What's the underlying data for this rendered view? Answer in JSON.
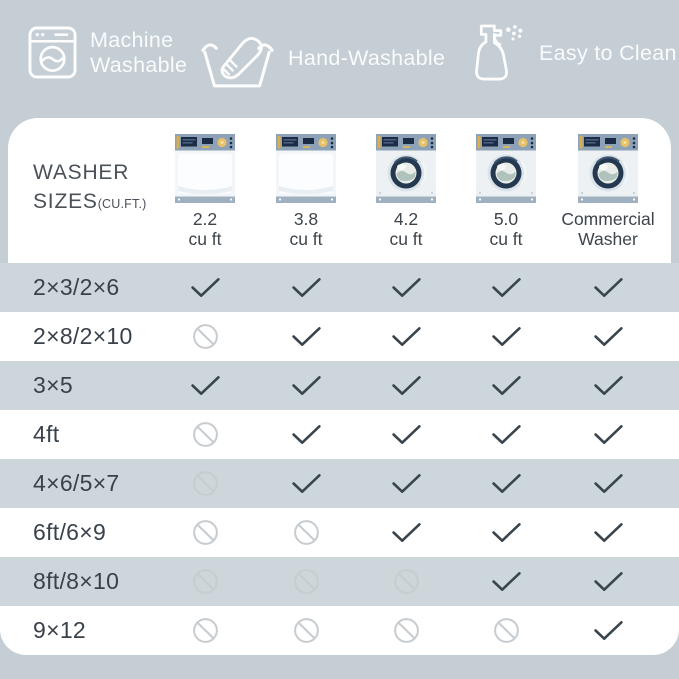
{
  "legend": {
    "items": [
      {
        "icon": "washing-machine-icon",
        "label_lines": [
          "Machine",
          "Washable"
        ]
      },
      {
        "icon": "hand-wash-icon",
        "label_lines": [
          "Hand-Washable"
        ]
      },
      {
        "icon": "spray-bottle-icon",
        "label_lines": [
          "Easy to Clean"
        ]
      }
    ]
  },
  "table_header": {
    "title_line1": "WASHER",
    "title_line2": "SIZES",
    "title_suffix": "(CU.FT.)"
  },
  "chart_data": {
    "type": "table",
    "title": "WASHER SIZES (CU.FT.)",
    "columns": [
      {
        "line1": "2.2",
        "line2": "cu ft",
        "type": "top-load"
      },
      {
        "line1": "3.8",
        "line2": "cu ft",
        "type": "top-load"
      },
      {
        "line1": "4.2",
        "line2": "cu ft",
        "type": "front-load"
      },
      {
        "line1": "5.0",
        "line2": "cu ft",
        "type": "front-load"
      },
      {
        "line1": "Commercial",
        "line2": "Washer",
        "type": "front-load"
      }
    ],
    "value_symbols": {
      "yes": "checkmark",
      "no": "prohibited-circle"
    },
    "rows": [
      {
        "label": "2×3/2×6",
        "values": [
          "yes",
          "yes",
          "yes",
          "yes",
          "yes"
        ]
      },
      {
        "label": "2×8/2×10",
        "values": [
          "no",
          "yes",
          "yes",
          "yes",
          "yes"
        ]
      },
      {
        "label": "3×5",
        "values": [
          "yes",
          "yes",
          "yes",
          "yes",
          "yes"
        ]
      },
      {
        "label": "4ft",
        "values": [
          "no",
          "yes",
          "yes",
          "yes",
          "yes"
        ]
      },
      {
        "label": "4×6/5×7",
        "values": [
          "no",
          "yes",
          "yes",
          "yes",
          "yes"
        ]
      },
      {
        "label": "6ft/6×9",
        "values": [
          "no",
          "no",
          "yes",
          "yes",
          "yes"
        ]
      },
      {
        "label": "8ft/8×10",
        "values": [
          "no",
          "no",
          "no",
          "yes",
          "yes"
        ]
      },
      {
        "label": "9×12",
        "values": [
          "no",
          "no",
          "no",
          "no",
          "yes"
        ]
      }
    ]
  },
  "colors": {
    "page_background": "#c4ced4",
    "stripe_row": "#ccd6db",
    "card": "#ffffff",
    "check": "#3a444c",
    "prohibited": "#c7ccd0",
    "dark_text": "#39414a",
    "legend_text": "#f9fbfc",
    "washer_panel": "#8da2b6",
    "washer_display_navy": "#1c2c46",
    "washer_dial_gold": "#e6c068"
  }
}
